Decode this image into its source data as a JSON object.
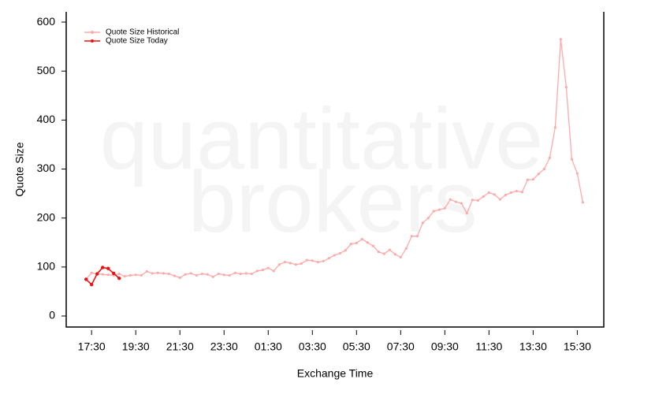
{
  "chart_data": {
    "type": "line",
    "watermark": [
      "quantitative",
      "brokers"
    ],
    "xlabel": "Exchange Time",
    "ylabel": "Quote Size",
    "legend": "top-left",
    "series": [
      {
        "name": "Quote Size Historical",
        "color": "#ffaaaa",
        "x": [
          0.25,
          0.5,
          0.75,
          1,
          1.25,
          1.5,
          1.75,
          2,
          2.25,
          2.5,
          2.75,
          3,
          3.25,
          3.5,
          3.75,
          4,
          4.25,
          4.5,
          4.75,
          5,
          5.25,
          5.5,
          5.75,
          6,
          6.25,
          6.5,
          6.75,
          7,
          7.25,
          7.5,
          7.75,
          8,
          8.25,
          8.5,
          8.75,
          9,
          9.25,
          9.5,
          9.75,
          10,
          10.25,
          10.5,
          10.75,
          11,
          11.25,
          11.5,
          11.75,
          12,
          12.25,
          12.5,
          12.75,
          13,
          13.25,
          13.5,
          13.75,
          14,
          14.25,
          14.5,
          14.75,
          15,
          15.25,
          15.5,
          15.75,
          16,
          16.25,
          16.5,
          16.75,
          17,
          17.25,
          17.5,
          17.75,
          18,
          18.25,
          18.5,
          18.75,
          19,
          19.25,
          19.5,
          19.75,
          20,
          20.25,
          20.5,
          20.75,
          21,
          21.25,
          21.5,
          21.75,
          22,
          22.25,
          22.5,
          22.75
        ],
        "values": [
          75,
          88,
          86,
          85,
          84,
          83,
          86,
          81,
          83,
          84,
          83,
          91,
          87,
          88,
          87,
          86,
          82,
          78,
          85,
          87,
          83,
          86,
          85,
          80,
          86,
          84,
          83,
          88,
          86,
          87,
          86,
          92,
          94,
          98,
          92,
          105,
          110,
          108,
          105,
          107,
          114,
          113,
          110,
          112,
          118,
          124,
          128,
          134,
          147,
          149,
          157,
          150,
          143,
          131,
          127,
          135,
          126,
          120,
          138,
          163,
          163,
          190,
          200,
          214,
          217,
          220,
          238,
          233,
          230,
          210,
          237,
          236,
          244,
          252,
          248,
          238,
          247,
          252,
          255,
          253,
          278,
          279,
          290,
          300,
          323,
          385,
          565,
          467,
          320,
          291,
          232
        ]
      },
      {
        "name": "Quote Size Today",
        "color": "#ee1111",
        "x": [
          0.25,
          0.5,
          0.75,
          1,
          1.25,
          1.5,
          1.75
        ],
        "values": [
          75,
          64,
          86,
          99,
          97,
          87,
          77
        ]
      }
    ],
    "xlim": [
      -0.65,
      23.7
    ],
    "xticks": [
      {
        "value": 0.5,
        "label": "17:30"
      },
      {
        "value": 2.5,
        "label": "19:30"
      },
      {
        "value": 4.5,
        "label": "21:30"
      },
      {
        "value": 6.5,
        "label": "23:30"
      },
      {
        "value": 8.5,
        "label": "01:30"
      },
      {
        "value": 10.5,
        "label": "03:30"
      },
      {
        "value": 12.5,
        "label": "05:30"
      },
      {
        "value": 14.5,
        "label": "07:30"
      },
      {
        "value": 16.5,
        "label": "09:30"
      },
      {
        "value": 18.5,
        "label": "11:30"
      },
      {
        "value": 20.5,
        "label": "13:30"
      },
      {
        "value": 22.5,
        "label": "15:30"
      }
    ],
    "ylim": [
      -22.5,
      621
    ],
    "yticks": [
      0,
      100,
      200,
      300,
      400,
      500,
      600
    ]
  }
}
